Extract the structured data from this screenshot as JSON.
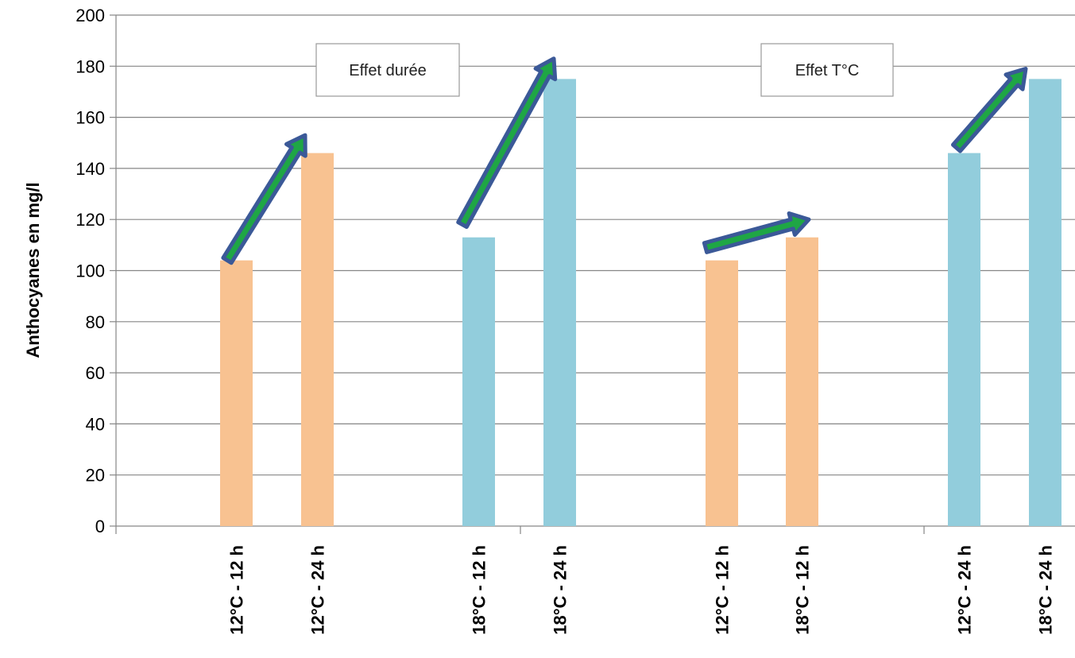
{
  "chart_data": {
    "type": "bar",
    "title": "",
    "xlabel": "",
    "ylabel": "Anthocyanes en mg/l",
    "ylim": [
      0,
      200
    ],
    "yticks": [
      0,
      20,
      40,
      60,
      80,
      100,
      120,
      140,
      160,
      180,
      200
    ],
    "grid": true,
    "legend": "none",
    "categories": [
      "12°C - 12 h",
      "12°C - 24 h",
      "18°C - 12 h",
      "18°C - 24 h",
      "12°C - 12 h",
      "18°C - 12 h",
      "12°C - 24 h",
      "18°C - 24 h"
    ],
    "groups": [
      [
        "12°C - 12 h",
        "12°C - 24 h"
      ],
      [
        "18°C - 12 h",
        "18°C - 24 h"
      ],
      [
        "12°C - 12 h",
        "18°C - 12 h"
      ],
      [
        "12°C - 24 h",
        "18°C - 24 h"
      ]
    ],
    "values": [
      104,
      146,
      113,
      175,
      104,
      113,
      146,
      175
    ],
    "bar_colors": [
      "#F8C291",
      "#F8C291",
      "#92CDDC",
      "#92CDDC",
      "#F8C291",
      "#F8C291",
      "#92CDDC",
      "#92CDDC"
    ],
    "annotations": [
      {
        "text": "Effet durée"
      },
      {
        "text": "Effet T°C"
      }
    ],
    "arrows": [
      {
        "from": [
          104
        ],
        "to": [
          153
        ]
      },
      {
        "from": [
          118
        ],
        "to": [
          183
        ]
      },
      {
        "from": [
          109
        ],
        "to": [
          120
        ]
      },
      {
        "from": [
          148
        ],
        "to": [
          179
        ]
      }
    ],
    "colors": {
      "grid": "#868686",
      "arrow_fill": "#1FA645",
      "arrow_outline": "#3B5998"
    }
  }
}
